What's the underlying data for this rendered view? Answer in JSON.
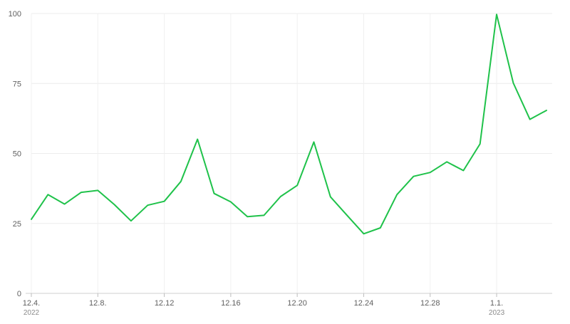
{
  "chart_data": {
    "type": "line",
    "title": "",
    "xlabel": "",
    "ylabel": "",
    "ylim": [
      0,
      100
    ],
    "yticks": [
      0,
      25,
      50,
      75,
      100
    ],
    "grid": true,
    "line_color": "#1fc24a",
    "x": [
      "2022-12-04",
      "2022-12-05",
      "2022-12-06",
      "2022-12-07",
      "2022-12-08",
      "2022-12-09",
      "2022-12-10",
      "2022-12-11",
      "2022-12-12",
      "2022-12-13",
      "2022-12-14",
      "2022-12-15",
      "2022-12-16",
      "2022-12-17",
      "2022-12-18",
      "2022-12-19",
      "2022-12-20",
      "2022-12-21",
      "2022-12-22",
      "2022-12-23",
      "2022-12-24",
      "2022-12-25",
      "2022-12-26",
      "2022-12-27",
      "2022-12-28",
      "2022-12-29",
      "2022-12-30",
      "2022-12-31",
      "2023-01-01",
      "2023-01-02",
      "2023-01-03",
      "2023-01-04"
    ],
    "series": [
      {
        "values": [
          26.5,
          35.3,
          31.9,
          36.1,
          36.8,
          31.7,
          25.9,
          31.5,
          32.9,
          40.0,
          55.1,
          35.7,
          32.7,
          27.4,
          27.9,
          34.6,
          38.6,
          54.1,
          34.5,
          27.9,
          21.3,
          23.4,
          35.3,
          41.8,
          43.2,
          47.0,
          43.9,
          53.4,
          99.7,
          75.2,
          62.2,
          65.4
        ]
      }
    ],
    "x_tick_labels": [
      {
        "label": "12.4.",
        "sub": "2022",
        "x": "2022-12-04"
      },
      {
        "label": "12.8.",
        "sub": "",
        "x": "2022-12-08"
      },
      {
        "label": "12.12",
        "sub": "",
        "x": "2022-12-12"
      },
      {
        "label": "12.16",
        "sub": "",
        "x": "2022-12-16"
      },
      {
        "label": "12.20",
        "sub": "",
        "x": "2022-12-20"
      },
      {
        "label": "12.24",
        "sub": "",
        "x": "2022-12-24"
      },
      {
        "label": "12.28",
        "sub": "",
        "x": "2022-12-28"
      },
      {
        "label": "1.1.",
        "sub": "2023",
        "x": "2023-01-01"
      }
    ]
  }
}
